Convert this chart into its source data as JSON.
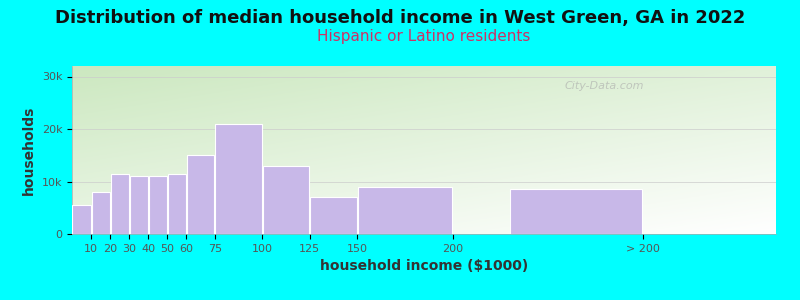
{
  "title": "Distribution of median household income in West Green, GA in 2022",
  "subtitle": "Hispanic or Latino residents",
  "xlabel": "household income ($1000)",
  "ylabel": "households",
  "background_color": "#00FFFF",
  "bar_color": "#C8B8E8",
  "bar_edge_color": "#FFFFFF",
  "yticks": [
    0,
    10000,
    20000,
    30000
  ],
  "ytick_labels": [
    "0",
    "10k",
    "20k",
    "30k"
  ],
  "ylim": [
    0,
    32000
  ],
  "title_fontsize": 13,
  "subtitle_fontsize": 11,
  "axis_label_fontsize": 10,
  "tick_fontsize": 8,
  "watermark": "City-Data.com",
  "subtitle_color": "#CC3366",
  "title_color": "#111111",
  "bar_lefts": [
    0,
    10,
    20,
    30,
    40,
    50,
    60,
    75,
    100,
    125,
    150,
    230
  ],
  "bar_widths": [
    10,
    10,
    10,
    10,
    10,
    10,
    15,
    25,
    25,
    25,
    50,
    70
  ],
  "bar_values": [
    5500,
    8000,
    11500,
    11000,
    11000,
    11500,
    15000,
    21000,
    13000,
    7000,
    9000,
    8500
  ],
  "xtick_positions": [
    10,
    20,
    30,
    40,
    50,
    60,
    75,
    100,
    125,
    150,
    200,
    300
  ],
  "xtick_labels": [
    "10",
    "20",
    "30",
    "40",
    "50",
    "60",
    "75",
    "100",
    "125",
    "150",
    "200",
    "> 200"
  ],
  "xlim": [
    0,
    370
  ]
}
